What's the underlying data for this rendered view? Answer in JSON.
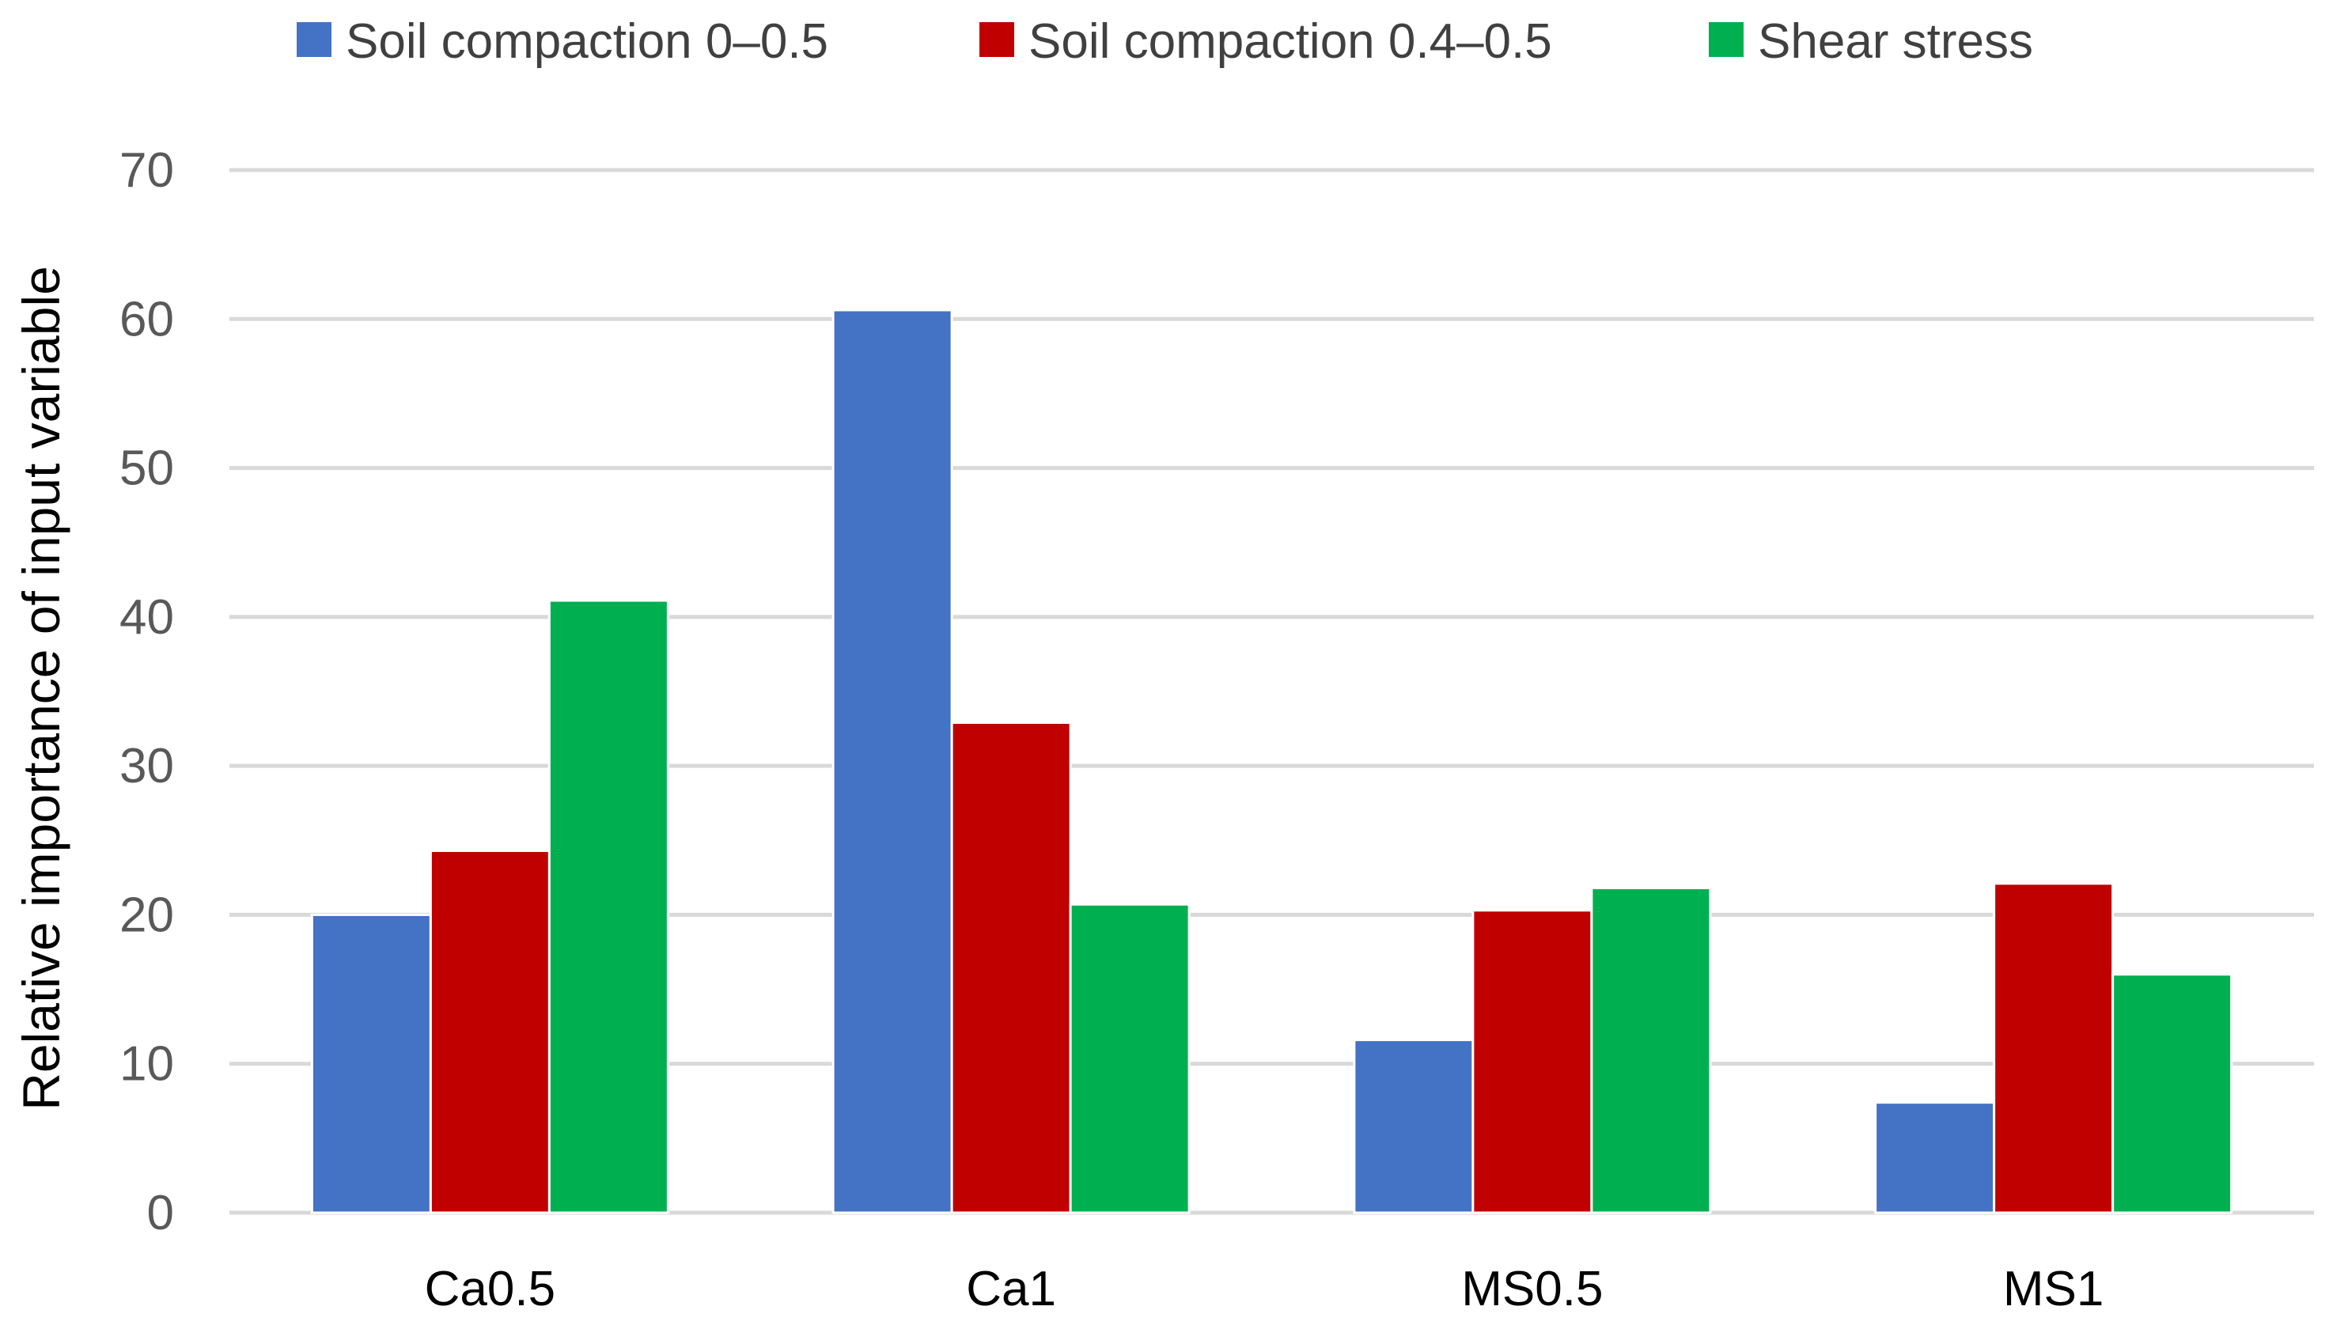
{
  "chart_data": {
    "type": "bar",
    "title": "",
    "xlabel": "",
    "ylabel": "Relative importance of input variable",
    "ylim": [
      0,
      70
    ],
    "yticks": [
      0,
      10,
      20,
      30,
      40,
      50,
      60,
      70
    ],
    "grid": true,
    "legend_position": "top-center",
    "categories": [
      "Ca0.5",
      "Ca1",
      "MS0.5",
      "MS1"
    ],
    "series": [
      {
        "name": "Soil compaction 0–0.5",
        "color": "#4472c4",
        "values": [
          20.0,
          60.6,
          11.6,
          7.4
        ]
      },
      {
        "name": "Soil compaction 0.4–0.5",
        "color": "#c00000",
        "values": [
          24.3,
          32.9,
          20.3,
          22.1
        ]
      },
      {
        "name": "Shear stress",
        "color": "#00b050",
        "values": [
          41.1,
          20.7,
          21.8,
          16.0
        ]
      }
    ]
  }
}
